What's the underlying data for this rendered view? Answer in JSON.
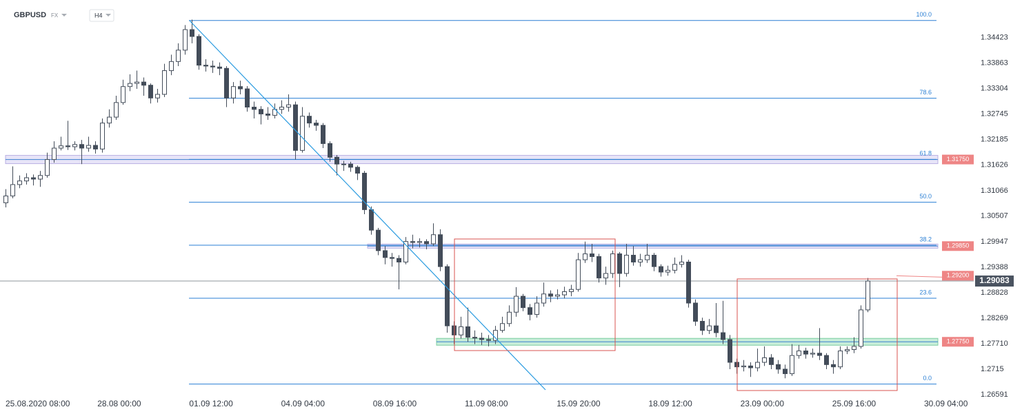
{
  "chart_data": {
    "type": "candlestick",
    "symbol": "GBPUSD",
    "market": "FX",
    "timeframe": "H4",
    "colors": {
      "up": "#ffffff",
      "down": "#434c59",
      "outline": "#434c59",
      "fib": "#2a7fd4",
      "level": "#ee8585"
    },
    "ylim": [
      1.2656,
      1.3525
    ],
    "yticks": [
      1.34423,
      1.33863,
      1.33304,
      1.32745,
      1.32185,
      1.31626,
      1.31066,
      1.30507,
      1.29947,
      1.29388,
      1.28828,
      1.28269,
      {
        "value": 1.2771,
        "label": "1.27710"
      },
      1.2715,
      1.26591
    ],
    "x_labels": [
      "25.08.2020  08:00",
      "28.08  00:00",
      "01.09  12:00",
      "04.09  04:00",
      "08.09  16:00",
      "11.09  08:00",
      "15.09  20:00",
      "18.09  12:00",
      "23.09  00:00",
      "25.09  16:00",
      "30.09  04:00"
    ],
    "last_price": 1.29083,
    "fibonacci": {
      "high": 1.34801,
      "low": 1.26823,
      "levels": [
        {
          "value": 100,
          "label": "100.0"
        },
        78.6,
        61.8,
        {
          "value": 50,
          "label": "50.0"
        },
        38.2,
        23.6,
        {
          "value": 0,
          "label": "0.0"
        }
      ]
    },
    "levels": [
      {
        "value": 1.3175,
        "label": "1.31750"
      },
      {
        "value": 1.2985,
        "label": "1.29850"
      },
      {
        "value": 1.292,
        "label": "1.29200"
      },
      {
        "value": 1.2775,
        "label": "1.27750"
      }
    ],
    "candles": [
      [
        1.308,
        1.311,
        1.307,
        1.3095
      ],
      [
        1.3095,
        1.316,
        1.309,
        1.312
      ],
      [
        1.312,
        1.314,
        1.3112,
        1.3128
      ],
      [
        1.3128,
        1.3145,
        1.312,
        1.3135
      ],
      [
        1.3135,
        1.3142,
        1.3118,
        1.3132
      ],
      [
        1.3132,
        1.315,
        1.3115,
        1.314
      ],
      [
        1.314,
        1.319,
        1.3135,
        1.3175
      ],
      [
        1.3175,
        1.3215,
        1.3168,
        1.32
      ],
      [
        1.32,
        1.3225,
        1.3195,
        1.3205
      ],
      [
        1.3205,
        1.326,
        1.3196,
        1.3203
      ],
      [
        1.3203,
        1.3215,
        1.3195,
        1.3208
      ],
      [
        1.3208,
        1.3218,
        1.3165,
        1.32
      ],
      [
        1.32,
        1.3225,
        1.3192,
        1.3206
      ],
      [
        1.3206,
        1.3215,
        1.3188,
        1.3198
      ],
      [
        1.3198,
        1.3265,
        1.319,
        1.3255
      ],
      [
        1.3255,
        1.3285,
        1.3245,
        1.3268
      ],
      [
        1.3268,
        1.3315,
        1.3262,
        1.33
      ],
      [
        1.33,
        1.335,
        1.3295,
        1.3335
      ],
      [
        1.3335,
        1.3362,
        1.3325,
        1.3342
      ],
      [
        1.3342,
        1.337,
        1.333,
        1.3345
      ],
      [
        1.3345,
        1.3355,
        1.3315,
        1.3338
      ],
      [
        1.3338,
        1.3342,
        1.3298,
        1.331
      ],
      [
        1.331,
        1.333,
        1.33,
        1.3318
      ],
      [
        1.3318,
        1.3385,
        1.3312,
        1.337
      ],
      [
        1.337,
        1.3405,
        1.336,
        1.339
      ],
      [
        1.339,
        1.343,
        1.338,
        1.3415
      ],
      [
        1.3415,
        1.347,
        1.3405,
        1.346
      ],
      [
        1.346,
        1.3482,
        1.343,
        1.3445
      ],
      [
        1.3445,
        1.345,
        1.3372,
        1.3382
      ],
      [
        1.3382,
        1.3395,
        1.3368,
        1.338
      ],
      [
        1.338,
        1.3392,
        1.3365,
        1.3378
      ],
      [
        1.3378,
        1.3388,
        1.336,
        1.3375
      ],
      [
        1.3375,
        1.338,
        1.329,
        1.331
      ],
      [
        1.331,
        1.3345,
        1.3298,
        1.3335
      ],
      [
        1.3335,
        1.3348,
        1.3318,
        1.333
      ],
      [
        1.333,
        1.3336,
        1.328,
        1.329
      ],
      [
        1.329,
        1.3302,
        1.3265,
        1.3285
      ],
      [
        1.3285,
        1.3292,
        1.3252,
        1.3275
      ],
      [
        1.3275,
        1.329,
        1.3262,
        1.3272
      ],
      [
        1.3272,
        1.3298,
        1.3265,
        1.3285
      ],
      [
        1.3285,
        1.3305,
        1.3275,
        1.329
      ],
      [
        1.329,
        1.3318,
        1.328,
        1.3295
      ],
      [
        1.3295,
        1.3302,
        1.3175,
        1.3195
      ],
      [
        1.3195,
        1.329,
        1.319,
        1.327
      ],
      [
        1.327,
        1.3278,
        1.3245,
        1.3255
      ],
      [
        1.3255,
        1.3262,
        1.3238,
        1.325
      ],
      [
        1.325,
        1.3255,
        1.32,
        1.321
      ],
      [
        1.321,
        1.3215,
        1.317,
        1.318
      ],
      [
        1.318,
        1.3185,
        1.314,
        1.3165
      ],
      [
        1.3165,
        1.3172,
        1.315,
        1.3165
      ],
      [
        1.3165,
        1.317,
        1.3148,
        1.3158
      ],
      [
        1.3158,
        1.3162,
        1.313,
        1.3145
      ],
      [
        1.3145,
        1.315,
        1.3055,
        1.3065
      ],
      [
        1.3065,
        1.3072,
        1.301,
        1.302
      ],
      [
        1.302,
        1.3025,
        1.2965,
        1.2975
      ],
      [
        1.2975,
        1.2985,
        1.2945,
        1.296
      ],
      [
        1.296,
        1.297,
        1.294,
        1.2958
      ],
      [
        1.2958,
        1.2965,
        1.289,
        1.295
      ],
      [
        1.295,
        1.3005,
        1.2945,
        1.2995
      ],
      [
        1.2995,
        1.301,
        1.298,
        1.2993
      ],
      [
        1.2993,
        1.3002,
        1.2982,
        1.2995
      ],
      [
        1.2995,
        1.3,
        1.2978,
        1.299
      ],
      [
        1.299,
        1.3035,
        1.2985,
        1.301
      ],
      [
        1.301,
        1.3022,
        1.293,
        1.294
      ],
      [
        1.294,
        1.2945,
        1.2795,
        1.281
      ],
      [
        1.281,
        1.282,
        1.277,
        1.279
      ],
      [
        1.279,
        1.283,
        1.2782,
        1.2808
      ],
      [
        1.2808,
        1.285,
        1.2775,
        1.2785
      ],
      [
        1.2785,
        1.28,
        1.277,
        1.2783
      ],
      [
        1.2783,
        1.2795,
        1.2768,
        1.278
      ],
      [
        1.278,
        1.279,
        1.2765,
        1.2778
      ],
      [
        1.2778,
        1.281,
        1.277,
        1.28
      ],
      [
        1.28,
        1.283,
        1.2795,
        1.2815
      ],
      [
        1.2815,
        1.2855,
        1.2808,
        1.284
      ],
      [
        1.284,
        1.2895,
        1.283,
        1.2875
      ],
      [
        1.2875,
        1.288,
        1.2842,
        1.285
      ],
      [
        1.285,
        1.2858,
        1.2822,
        1.2835
      ],
      [
        1.2835,
        1.2875,
        1.2828,
        1.286
      ],
      [
        1.286,
        1.2905,
        1.2852,
        1.288
      ],
      [
        1.288,
        1.2888,
        1.2862,
        1.2875
      ],
      [
        1.2875,
        1.289,
        1.2868,
        1.2878
      ],
      [
        1.2878,
        1.2896,
        1.287,
        1.2885
      ],
      [
        1.2885,
        1.29,
        1.2875,
        1.289
      ],
      [
        1.289,
        1.297,
        1.2885,
        1.2955
      ],
      [
        1.2955,
        1.2995,
        1.2948,
        1.2968
      ],
      [
        1.2968,
        1.299,
        1.295,
        1.2962
      ],
      [
        1.2962,
        1.2968,
        1.2905,
        1.2915
      ],
      [
        1.2915,
        1.294,
        1.29,
        1.2925
      ],
      [
        1.2925,
        1.2975,
        1.2915,
        1.2968
      ],
      [
        1.2968,
        1.2972,
        1.2895,
        1.2925
      ],
      [
        1.2925,
        1.299,
        1.2918,
        1.2965
      ],
      [
        1.2965,
        1.2985,
        1.2942,
        1.295
      ],
      [
        1.295,
        1.2968,
        1.294,
        1.2955
      ],
      [
        1.2955,
        1.299,
        1.2948,
        1.2965
      ],
      [
        1.2965,
        1.297,
        1.293,
        1.294
      ],
      [
        1.294,
        1.2945,
        1.2918,
        1.2928
      ],
      [
        1.2928,
        1.2942,
        1.292,
        1.2932
      ],
      [
        1.2932,
        1.296,
        1.2925,
        1.2945
      ],
      [
        1.2945,
        1.2965,
        1.2938,
        1.295
      ],
      [
        1.295,
        1.2955,
        1.285,
        1.286
      ],
      [
        1.286,
        1.2868,
        1.281,
        1.282
      ],
      [
        1.282,
        1.2828,
        1.279,
        1.28
      ],
      [
        1.28,
        1.2825,
        1.2792,
        1.281
      ],
      [
        1.281,
        1.286,
        1.2785,
        1.2795
      ],
      [
        1.2795,
        1.2865,
        1.277,
        1.278
      ],
      [
        1.278,
        1.279,
        1.2715,
        1.273
      ],
      [
        1.273,
        1.2738,
        1.2705,
        1.272
      ],
      [
        1.272,
        1.2735,
        1.271,
        1.2722
      ],
      [
        1.2722,
        1.273,
        1.2698,
        1.2718
      ],
      [
        1.2718,
        1.276,
        1.271,
        1.273
      ],
      [
        1.273,
        1.2765,
        1.2722,
        1.274
      ],
      [
        1.274,
        1.2748,
        1.2715,
        1.2725
      ],
      [
        1.2725,
        1.2735,
        1.2705,
        1.2715
      ],
      [
        1.2715,
        1.2725,
        1.2695,
        1.2705
      ],
      [
        1.2705,
        1.277,
        1.27,
        1.2745
      ],
      [
        1.2745,
        1.2768,
        1.2738,
        1.2755
      ],
      [
        1.2755,
        1.2762,
        1.2738,
        1.2748
      ],
      [
        1.2748,
        1.276,
        1.274,
        1.275
      ],
      [
        1.275,
        1.2805,
        1.2735,
        1.2745
      ],
      [
        1.2745,
        1.275,
        1.2715,
        1.2725
      ],
      [
        1.2725,
        1.2735,
        1.2705,
        1.272
      ],
      [
        1.272,
        1.2765,
        1.2715,
        1.2755
      ],
      [
        1.2755,
        1.2765,
        1.2748,
        1.2758
      ],
      [
        1.2758,
        1.2785,
        1.275,
        1.2765
      ],
      [
        1.2765,
        1.2855,
        1.276,
        1.2845
      ],
      [
        1.2845,
        1.2915,
        1.284,
        1.29083
      ]
    ]
  }
}
